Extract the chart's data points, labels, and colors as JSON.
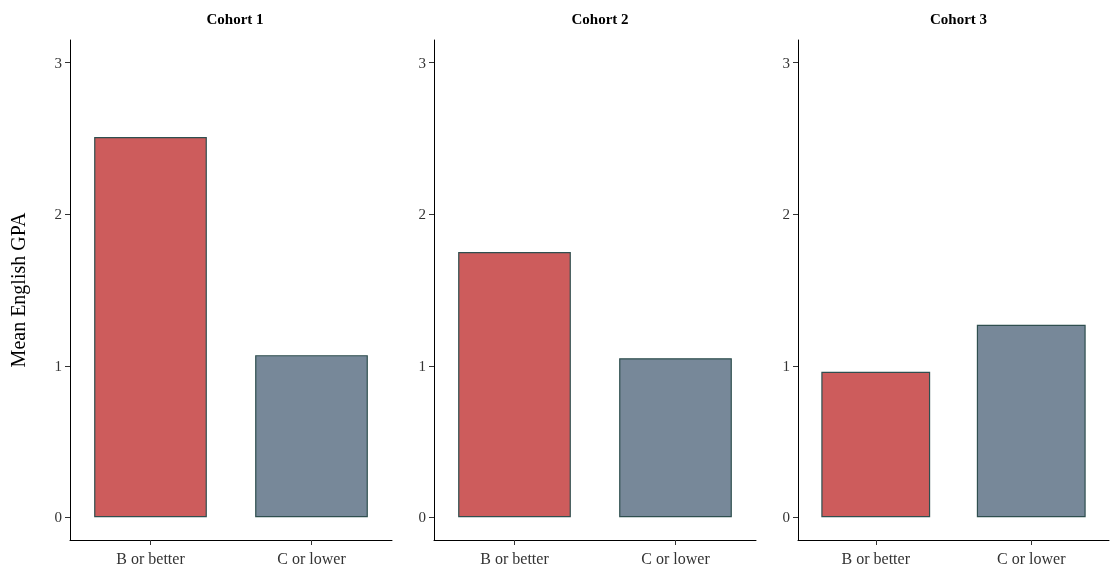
{
  "chart_data": [
    {
      "type": "bar",
      "title": "Cohort 1",
      "ylabel": "Mean English GPA",
      "categories": [
        "B or better",
        "C or lower"
      ],
      "values": [
        2.51,
        1.07
      ],
      "colors": [
        "#cd5c5c",
        "#778899"
      ],
      "ylim": [
        -0.15,
        3.15
      ],
      "yticks": [
        0,
        1,
        2,
        3
      ]
    },
    {
      "type": "bar",
      "title": "Cohort 2",
      "categories": [
        "B or better",
        "C or lower"
      ],
      "values": [
        1.75,
        1.05
      ],
      "colors": [
        "#cd5c5c",
        "#778899"
      ],
      "ylim": [
        -0.15,
        3.15
      ],
      "yticks": [
        0,
        1,
        2,
        3
      ]
    },
    {
      "type": "bar",
      "title": "Cohort 3",
      "categories": [
        "B or better",
        "C or lower"
      ],
      "values": [
        0.96,
        1.27
      ],
      "colors": [
        "#cd5c5c",
        "#778899"
      ],
      "ylim": [
        -0.15,
        3.15
      ],
      "yticks": [
        0,
        1,
        2,
        3
      ]
    }
  ]
}
